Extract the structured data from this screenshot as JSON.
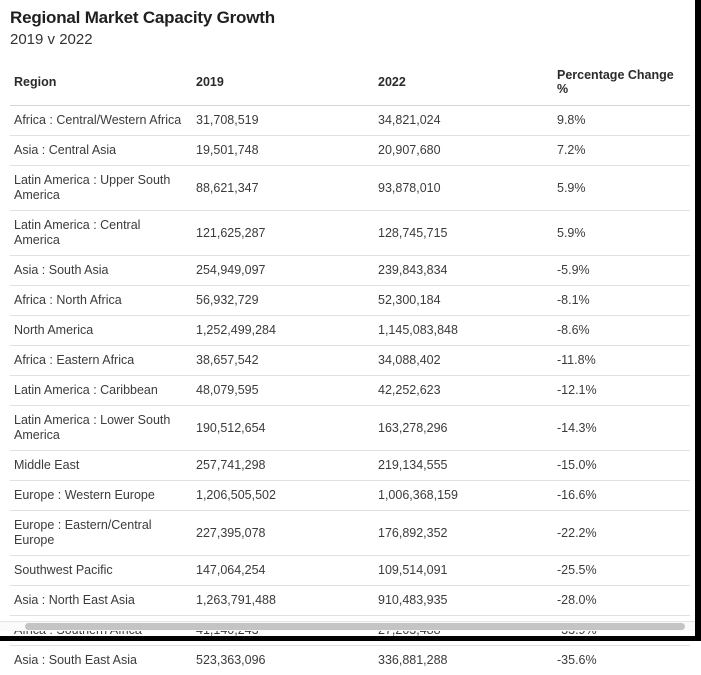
{
  "header": {
    "title": "Regional Market Capacity Growth",
    "subtitle": "2019 v 2022"
  },
  "table": {
    "columns": [
      "Region",
      "2019",
      "2022",
      "Percentage Change %"
    ],
    "rows": [
      [
        "Africa : Central/Western Africa",
        "31,708,519",
        "34,821,024",
        "9.8%"
      ],
      [
        "Asia : Central Asia",
        "19,501,748",
        "20,907,680",
        "7.2%"
      ],
      [
        "Latin America : Upper South America",
        "88,621,347",
        "93,878,010",
        "5.9%"
      ],
      [
        "Latin America : Central America",
        "121,625,287",
        "128,745,715",
        "5.9%"
      ],
      [
        "Asia : South Asia",
        "254,949,097",
        "239,843,834",
        "-5.9%"
      ],
      [
        "Africa : North Africa",
        "56,932,729",
        "52,300,184",
        "-8.1%"
      ],
      [
        "North America",
        "1,252,499,284",
        "1,145,083,848",
        "-8.6%"
      ],
      [
        "Africa : Eastern Africa",
        "38,657,542",
        "34,088,402",
        "-11.8%"
      ],
      [
        "Latin America : Caribbean",
        "48,079,595",
        "42,252,623",
        "-12.1%"
      ],
      [
        "Latin America : Lower South America",
        "190,512,654",
        "163,278,296",
        "-14.3%"
      ],
      [
        "Middle East",
        "257,741,298",
        "219,134,555",
        "-15.0%"
      ],
      [
        "Europe : Western Europe",
        "1,206,505,502",
        "1,006,368,159",
        "-16.6%"
      ],
      [
        "Europe : Eastern/Central Europe",
        "227,395,078",
        "176,892,352",
        "-22.2%"
      ],
      [
        "Southwest Pacific",
        "147,064,254",
        "109,514,091",
        "-25.5%"
      ],
      [
        "Asia : North East Asia",
        "1,263,791,488",
        "910,483,935",
        "-28.0%"
      ],
      [
        "Africa : Southern Africa",
        "41,140,243",
        "27,203,488",
        "-33.9%"
      ],
      [
        "Asia : South East Asia",
        "523,363,096",
        "336,881,288",
        "-35.6%"
      ]
    ]
  },
  "colors": {
    "text": "#3b3b3b",
    "title": "#1f1f1f",
    "divider": "#e0e0e0",
    "scrollbar_thumb": "#c4c4c4",
    "edge": "#000000"
  }
}
